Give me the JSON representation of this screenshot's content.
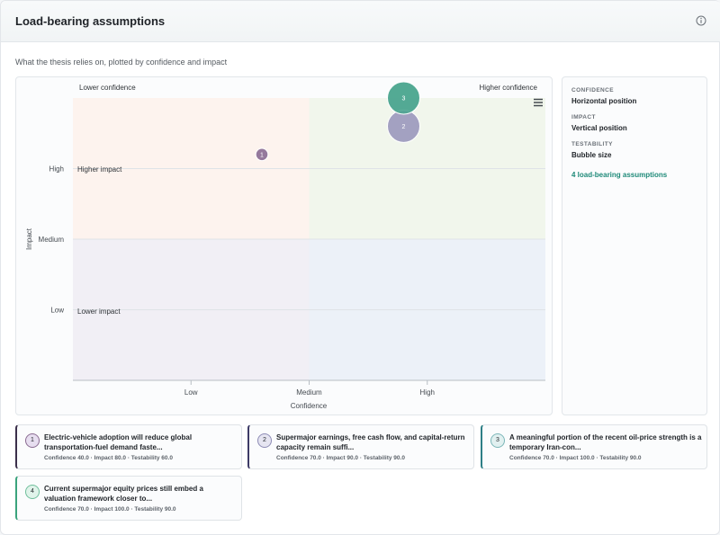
{
  "header": {
    "title": "Load-bearing assumptions",
    "info_icon": "info-circle-icon"
  },
  "subtitle": "What the thesis relies on, plotted by confidence and impact",
  "chart_data": {
    "type": "scatter",
    "xlabel": "Confidence",
    "ylabel": "Impact",
    "x_ticks": [
      {
        "label": "Low",
        "value": 25
      },
      {
        "label": "Medium",
        "value": 50
      },
      {
        "label": "High",
        "value": 75
      }
    ],
    "y_ticks": [
      {
        "label": "High",
        "value": 75
      },
      {
        "label": "Medium",
        "value": 50
      },
      {
        "label": "Low",
        "value": 25
      }
    ],
    "xlim": [
      0,
      100
    ],
    "ylim": [
      0,
      100
    ],
    "quadrant_labels": {
      "top_left": "Lower confidence",
      "top_right": "Higher confidence",
      "upper_left": "Higher impact",
      "lower_left": "Lower impact"
    },
    "quadrant_colors": {
      "top_left": "#fdf3ee",
      "top_right": "#f1f6ec",
      "bottom_left": "#f1eff5",
      "bottom_right": "#ecf1f8"
    },
    "points": [
      {
        "id": "1",
        "confidence": 40.0,
        "impact": 80.0,
        "testability": 60.0,
        "color": "#8a6b92"
      },
      {
        "id": "2",
        "confidence": 70.0,
        "impact": 90.0,
        "testability": 90.0,
        "color": "#9a98bd"
      },
      {
        "id": "3",
        "confidence": 70.0,
        "impact": 100.0,
        "testability": 90.0,
        "color": "#4fa692"
      },
      {
        "id": "4",
        "confidence": 70.0,
        "impact": 100.0,
        "testability": 90.0,
        "color": "#6fbf9c"
      }
    ],
    "grid": true,
    "menu_icon": "hamburger-menu-icon"
  },
  "legend": {
    "confidence_head": "CONFIDENCE",
    "confidence_val": "Horizontal position",
    "impact_head": "IMPACT",
    "impact_val": "Vertical position",
    "testability_head": "TESTABILITY",
    "testability_val": "Bubble size",
    "count": "4 load-bearing assumptions"
  },
  "assumptions": [
    {
      "num": "1",
      "text": "Electric-vehicle adoption will reduce global transportation-fuel demand faste...",
      "meta": "Confidence 40.0 · Impact 80.0 · Testability 60.0",
      "accent": "#3b2f4a",
      "badge_bg": "#e7def0",
      "badge_border": "#8a6b92"
    },
    {
      "num": "2",
      "text": "Supermajor earnings, free cash flow, and capital-return capacity remain suffi...",
      "meta": "Confidence 70.0 · Impact 90.0 · Testability 90.0",
      "accent": "#3d3a66",
      "badge_bg": "#e6e5f1",
      "badge_border": "#8d8bb5"
    },
    {
      "num": "3",
      "text": "A meaningful portion of the recent oil-price strength is a temporary Iran-con...",
      "meta": "Confidence 70.0 · Impact 100.0 · Testability 90.0",
      "accent": "#2e7f86",
      "badge_bg": "#e1f0f0",
      "badge_border": "#7bb6b8"
    },
    {
      "num": "4",
      "text": "Current supermajor equity prices still embed a valuation framework closer to...",
      "meta": "Confidence 70.0 · Impact 100.0 · Testability 90.0",
      "accent": "#3aa37c",
      "badge_bg": "#e0f3ea",
      "badge_border": "#6fbf9c"
    }
  ]
}
